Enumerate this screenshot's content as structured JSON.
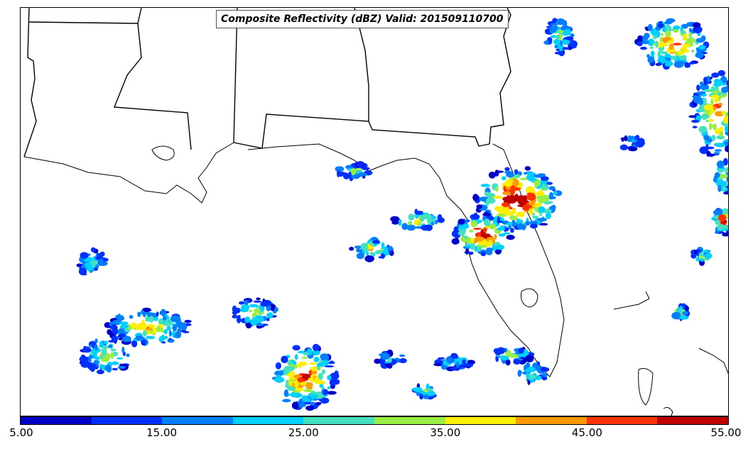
{
  "title": "Composite Reflectivity (dBZ) Valid: 201509110700",
  "colorbar": {
    "ticks": [
      "5.00",
      "15.00",
      "25.00",
      "35.00",
      "45.00",
      "55.00"
    ],
    "min": 5,
    "max": 55,
    "colors": [
      "#0000c8",
      "#0033ff",
      "#0088ff",
      "#00ccff",
      "#44ddaa",
      "#99ee44",
      "#ffee00",
      "#ffaa00",
      "#ff5500",
      "#ff2200",
      "#bb0000"
    ]
  }
}
